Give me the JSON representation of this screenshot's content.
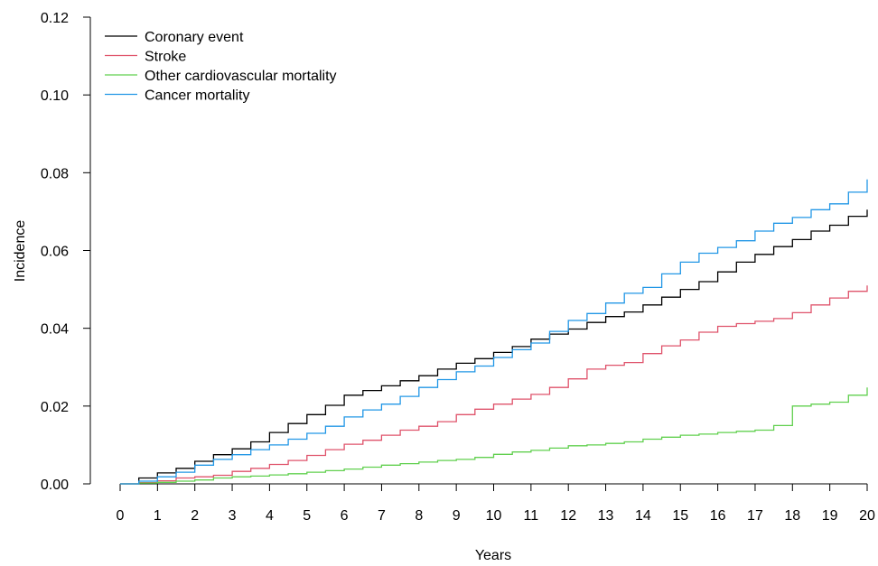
{
  "chart_data": {
    "type": "line",
    "title": "",
    "xlabel": "Years",
    "ylabel": "Incidence",
    "xlim": [
      0,
      20
    ],
    "ylim": [
      0,
      0.12
    ],
    "x_ticks": [
      "0",
      "1",
      "2",
      "3",
      "4",
      "5",
      "6",
      "7",
      "8",
      "9",
      "10",
      "11",
      "12",
      "13",
      "14",
      "15",
      "16",
      "17",
      "18",
      "19",
      "20"
    ],
    "y_ticks": [
      "0.00",
      "0.02",
      "0.04",
      "0.06",
      "0.08",
      "0.10",
      "0.12"
    ],
    "grid": false,
    "legend_position": "top-left",
    "series": [
      {
        "name": "Coronary event",
        "color": "#000000",
        "x": [
          0,
          0.5,
          1,
          1.5,
          2,
          2.5,
          3,
          3.5,
          4,
          4.5,
          5,
          5.5,
          6,
          6.5,
          7,
          7.5,
          8,
          8.5,
          9,
          9.5,
          10,
          10.5,
          11,
          11.5,
          12,
          12.5,
          13,
          13.5,
          14,
          14.5,
          15,
          15.5,
          16,
          16.5,
          17,
          17.5,
          18,
          18.5,
          19,
          19.5,
          20
        ],
        "y": [
          0,
          0.0015,
          0.0028,
          0.004,
          0.0058,
          0.0075,
          0.009,
          0.0108,
          0.0132,
          0.0155,
          0.0178,
          0.0202,
          0.0228,
          0.024,
          0.0252,
          0.0265,
          0.0278,
          0.0295,
          0.031,
          0.0322,
          0.0338,
          0.0353,
          0.0372,
          0.0385,
          0.0398,
          0.0415,
          0.043,
          0.0442,
          0.046,
          0.048,
          0.05,
          0.052,
          0.0545,
          0.057,
          0.059,
          0.061,
          0.0628,
          0.065,
          0.0665,
          0.0688,
          0.0705
        ]
      },
      {
        "name": "Stroke",
        "color": "#DF536B",
        "x": [
          0,
          0.5,
          1,
          1.5,
          2,
          2.5,
          3,
          3.5,
          4,
          4.5,
          5,
          5.5,
          6,
          6.5,
          7,
          7.5,
          8,
          8.5,
          9,
          9.5,
          10,
          10.5,
          11,
          11.5,
          12,
          12.5,
          13,
          13.5,
          14,
          14.5,
          15,
          15.5,
          16,
          16.5,
          17,
          17.5,
          18,
          18.5,
          19,
          19.5,
          20
        ],
        "y": [
          0,
          0.0003,
          0.0008,
          0.0015,
          0.0018,
          0.0022,
          0.0032,
          0.004,
          0.005,
          0.006,
          0.0073,
          0.0088,
          0.0102,
          0.0112,
          0.0125,
          0.0138,
          0.0148,
          0.016,
          0.0178,
          0.0192,
          0.0205,
          0.0218,
          0.023,
          0.0248,
          0.027,
          0.0295,
          0.0305,
          0.0312,
          0.0335,
          0.0355,
          0.037,
          0.039,
          0.0405,
          0.0412,
          0.0418,
          0.0425,
          0.044,
          0.046,
          0.0478,
          0.0495,
          0.051
        ]
      },
      {
        "name": "Other cardiovascular mortality",
        "color": "#61D04F",
        "x": [
          0,
          0.5,
          1,
          1.5,
          2,
          2.5,
          3,
          3.5,
          4,
          4.5,
          5,
          5.5,
          6,
          6.5,
          7,
          7.5,
          8,
          8.5,
          9,
          9.5,
          10,
          10.5,
          11,
          11.5,
          12,
          12.5,
          13,
          13.5,
          14,
          14.5,
          15,
          15.5,
          16,
          16.5,
          17,
          17.5,
          18,
          18.5,
          19,
          19.5,
          20
        ],
        "y": [
          0,
          0.0002,
          0.0004,
          0.0007,
          0.001,
          0.0015,
          0.0018,
          0.002,
          0.0023,
          0.0026,
          0.003,
          0.0034,
          0.0038,
          0.0043,
          0.0048,
          0.0052,
          0.0056,
          0.006,
          0.0063,
          0.0068,
          0.0076,
          0.0082,
          0.0086,
          0.0092,
          0.0098,
          0.01,
          0.0104,
          0.0108,
          0.0115,
          0.012,
          0.0125,
          0.0128,
          0.0132,
          0.0135,
          0.0138,
          0.015,
          0.02,
          0.0205,
          0.021,
          0.0228,
          0.0248
        ]
      },
      {
        "name": "Cancer mortality",
        "color": "#2297E6",
        "x": [
          0,
          0.5,
          1,
          1.5,
          2,
          2.5,
          3,
          3.5,
          4,
          4.5,
          5,
          5.5,
          6,
          6.5,
          7,
          7.5,
          8,
          8.5,
          9,
          9.5,
          10,
          10.5,
          11,
          11.5,
          12,
          12.5,
          13,
          13.5,
          14,
          14.5,
          15,
          15.5,
          16,
          16.5,
          17,
          17.5,
          18,
          18.5,
          19,
          19.5,
          20
        ],
        "y": [
          0,
          0.0007,
          0.0018,
          0.003,
          0.0048,
          0.0063,
          0.0075,
          0.0088,
          0.01,
          0.0115,
          0.013,
          0.0148,
          0.0172,
          0.019,
          0.0205,
          0.0225,
          0.0248,
          0.0268,
          0.0288,
          0.0303,
          0.0325,
          0.0345,
          0.0362,
          0.0392,
          0.042,
          0.0438,
          0.0465,
          0.049,
          0.0505,
          0.054,
          0.057,
          0.0593,
          0.0608,
          0.0625,
          0.065,
          0.067,
          0.0685,
          0.0705,
          0.072,
          0.075,
          0.0783
        ]
      }
    ]
  }
}
